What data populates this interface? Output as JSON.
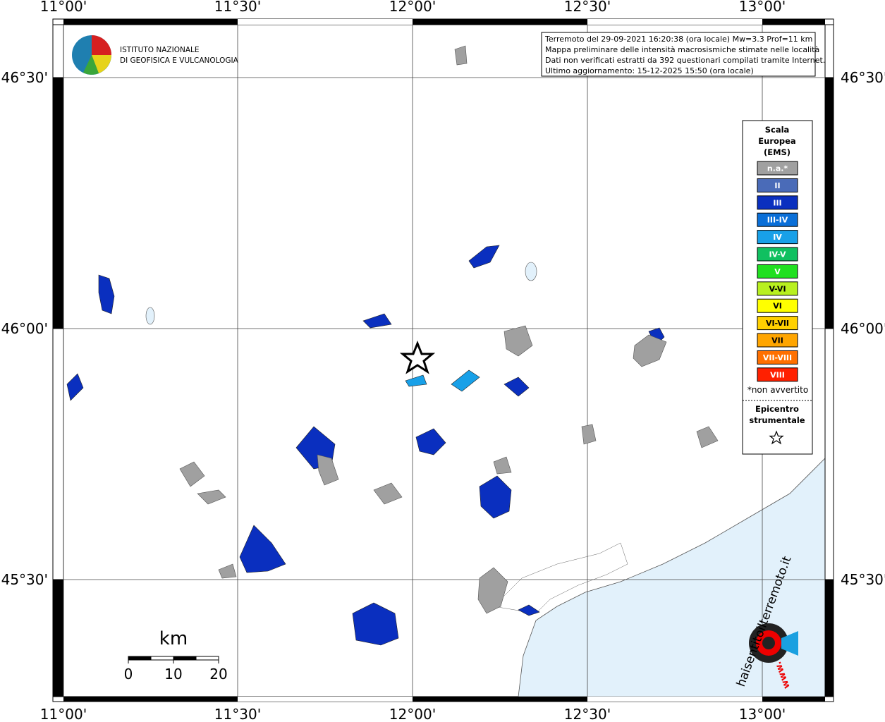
{
  "map": {
    "top_labels": [
      "11°00'",
      "11°30'",
      "12°00'",
      "12°30'",
      "13°00'"
    ],
    "bottom_labels": [
      "11°00'",
      "11°30'",
      "12°00'",
      "12°30'",
      "13°00'"
    ],
    "left_labels": [
      "46°30'",
      "46°00'",
      "45°30'"
    ],
    "right_labels": [
      "46°30'",
      "46°00'",
      "45°30'"
    ]
  },
  "logo": {
    "lines": [
      "ISTITUTO NAZIONALE",
      "DI GEOFISICA E VULCANOLOGIA"
    ]
  },
  "info": {
    "lines": [
      "Terremoto del 29-09-2021 16:20:38 (ora locale) Mw=3.3 Prof=11 km",
      "Mappa preliminare delle intensità macrosismiche stimate nelle località",
      "Dati non verificati estratti da 392 questionari compilati tramite Internet.",
      "Ultimo aggiornamento: 15-12-2025 15:50 (ora locale)"
    ]
  },
  "legend": {
    "title_lines": [
      "Scala",
      "Europea",
      "(EMS)"
    ],
    "items": [
      {
        "label": "n.a.*",
        "color": "#a0a0a0"
      },
      {
        "label": "II",
        "color": "#4a6bb8"
      },
      {
        "label": "III",
        "color": "#0a2fbf"
      },
      {
        "label": "III-IV",
        "color": "#0a6fd8"
      },
      {
        "label": "IV",
        "color": "#18a0e8"
      },
      {
        "label": "IV-V",
        "color": "#10c060"
      },
      {
        "label": "V",
        "color": "#20e020"
      },
      {
        "label": "V-VI",
        "color": "#b8f020"
      },
      {
        "label": "VI",
        "color": "#ffff00"
      },
      {
        "label": "VI-VII",
        "color": "#ffd000"
      },
      {
        "label": "VII",
        "color": "#ffa500"
      },
      {
        "label": "VII-VIII",
        "color": "#ff7000"
      },
      {
        "label": "VIII",
        "color": "#ff2000"
      }
    ],
    "note": "*non avvertito",
    "epicenter_lines": [
      "Epicentro",
      "strumentale"
    ]
  },
  "scale_bar": {
    "unit": "km",
    "ticks": [
      0,
      10,
      20
    ]
  },
  "watermark": {
    "text": "haisentitoilterremoto.it",
    "url": "www."
  }
}
